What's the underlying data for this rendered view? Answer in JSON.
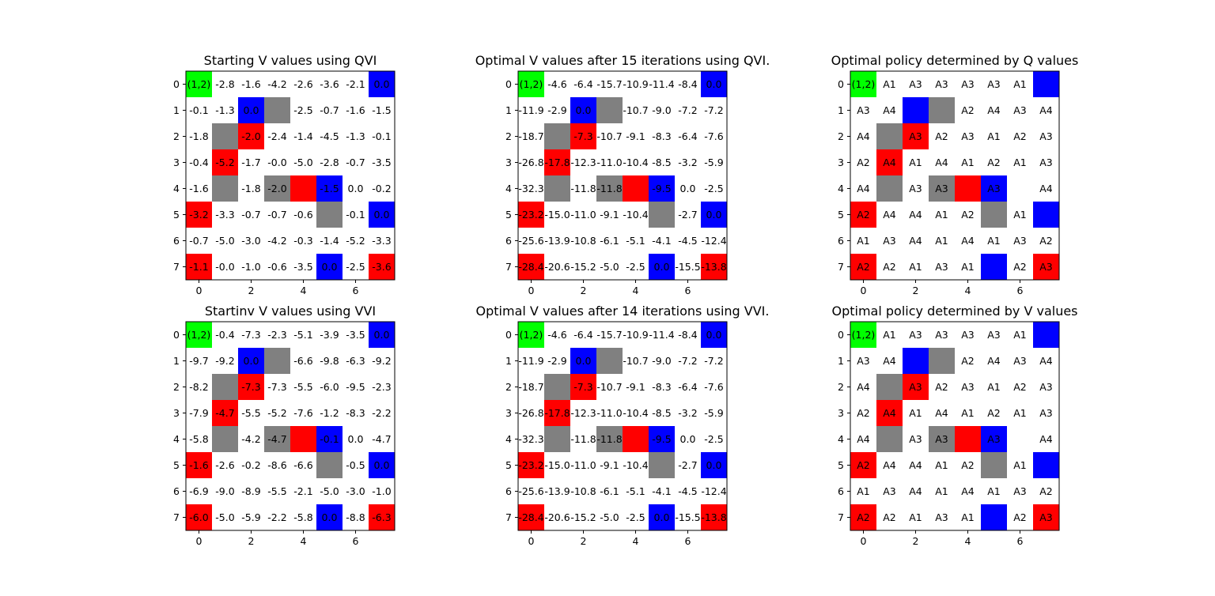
{
  "colors": {
    "start": "#00ff00",
    "goal": "#0000ff",
    "hazard": "#ff0000",
    "wall": "#808080",
    "empty": "#ffffff"
  },
  "legend_map": {
    "S": "start",
    "G": "goal",
    "R": "hazard",
    "W": "wall",
    ".": "empty"
  },
  "chart_data": [
    {
      "type": "heatmap",
      "title": "Starting V values using QVI",
      "x_ticks": [
        "0",
        "2",
        "4",
        "6"
      ],
      "y_ticks": [
        "0",
        "1",
        "2",
        "3",
        "4",
        "5",
        "6",
        "7"
      ],
      "layout": [
        "S......G",
        "..GW....",
        ".WR.....",
        ".R......",
        ".W.WRG..",
        "R....W.G",
        "........",
        "R....G.R"
      ],
      "cells": [
        [
          "(1,2)",
          "-2.8",
          "-1.6",
          "-4.2",
          "-2.6",
          "-3.6",
          "-2.1",
          "0.0"
        ],
        [
          "-0.1",
          "-1.3",
          "0.0",
          "",
          "-2.5",
          "-0.7",
          "-1.6",
          "-1.5"
        ],
        [
          "-1.8",
          "",
          "-2.0",
          "-2.4",
          "-1.4",
          "-4.5",
          "-1.3",
          "-0.1"
        ],
        [
          "-0.4",
          "-5.2",
          "-1.7",
          "-0.0",
          "-5.0",
          "-2.8",
          "-0.7",
          "-3.5"
        ],
        [
          "-1.6",
          "",
          "-1.8",
          "-2.0",
          "",
          "-1.5",
          "0.0",
          "-0.2"
        ],
        [
          "-3.2",
          "-3.3",
          "-0.7",
          "-0.7",
          "-0.6",
          "",
          "-0.1",
          "0.0"
        ],
        [
          "-0.7",
          "-5.0",
          "-3.0",
          "-4.2",
          "-0.3",
          "-1.4",
          "-5.2",
          "-3.3"
        ],
        [
          "-1.1",
          "-0.0",
          "-1.0",
          "-0.6",
          "-3.5",
          "0.0",
          "-2.5",
          "-3.6"
        ]
      ]
    },
    {
      "type": "heatmap",
      "title": "Optimal V values after 15 iterations using QVI.",
      "x_ticks": [
        "0",
        "2",
        "4",
        "6"
      ],
      "y_ticks": [
        "0",
        "1",
        "2",
        "3",
        "4",
        "5",
        "6",
        "7"
      ],
      "layout": [
        "S......G",
        "..GW....",
        ".WR.....",
        ".R......",
        ".W.WRG..",
        "R....W.G",
        "........",
        "R....G.R"
      ],
      "cells": [
        [
          "(1,2)",
          "-4.6",
          "-6.4",
          "-15.7",
          "-10.9",
          "-11.4",
          "-8.4",
          "0.0"
        ],
        [
          "-11.9",
          "-2.9",
          "0.0",
          "",
          "-10.7",
          "-9.0",
          "-7.2",
          "-7.2"
        ],
        [
          "-18.7",
          "",
          "-7.3",
          "-10.7",
          "-9.1",
          "-8.3",
          "-6.4",
          "-7.6"
        ],
        [
          "-26.8",
          "-17.8",
          "-12.3",
          "-11.0",
          "-10.4",
          "-8.5",
          "-3.2",
          "-5.9"
        ],
        [
          "-32.3",
          "",
          "-11.8",
          "-11.8",
          "",
          "-9.5",
          "0.0",
          "-2.5"
        ],
        [
          "-23.2",
          "-15.0",
          "-11.0",
          "-9.1",
          "-10.4",
          "",
          "-2.7",
          "0.0"
        ],
        [
          "-25.6",
          "-13.9",
          "-10.8",
          "-6.1",
          "-5.1",
          "-4.1",
          "-4.5",
          "-12.4"
        ],
        [
          "-28.4",
          "-20.6",
          "-15.2",
          "-5.0",
          "-2.5",
          "0.0",
          "-15.5",
          "-13.8"
        ]
      ]
    },
    {
      "type": "heatmap",
      "title": "Optimal policy determined by Q values",
      "x_ticks": [
        "0",
        "2",
        "4",
        "6"
      ],
      "y_ticks": [
        "0",
        "1",
        "2",
        "3",
        "4",
        "5",
        "6",
        "7"
      ],
      "layout": [
        "S......G",
        "..GW....",
        ".WR.....",
        ".R......",
        ".W.WRG..",
        "R....W.G",
        "........",
        "R....G.R"
      ],
      "cells": [
        [
          "(1,2)",
          "A1",
          "A3",
          "A3",
          "A3",
          "A3",
          "A1",
          ""
        ],
        [
          "A3",
          "A4",
          "",
          "",
          "A2",
          "A4",
          "A3",
          "A4"
        ],
        [
          "A4",
          "",
          "A3",
          "A2",
          "A3",
          "A1",
          "A2",
          "A3"
        ],
        [
          "A2",
          "A4",
          "A1",
          "A4",
          "A1",
          "A2",
          "A1",
          "A3"
        ],
        [
          "A4",
          "",
          "A3",
          "A3",
          "",
          "A3",
          "",
          "A4"
        ],
        [
          "A2",
          "A4",
          "A4",
          "A1",
          "A2",
          "",
          "A1",
          ""
        ],
        [
          "A1",
          "A3",
          "A4",
          "A1",
          "A4",
          "A1",
          "A3",
          "A2"
        ],
        [
          "A2",
          "A2",
          "A1",
          "A3",
          "A1",
          "",
          "A2",
          "A3"
        ]
      ]
    },
    {
      "type": "heatmap",
      "title": "Startinv V values using VVI",
      "x_ticks": [
        "0",
        "2",
        "4",
        "6"
      ],
      "y_ticks": [
        "0",
        "1",
        "2",
        "3",
        "4",
        "5",
        "6",
        "7"
      ],
      "layout": [
        "S......G",
        "..GW....",
        ".WR.....",
        ".R......",
        ".W.WRG..",
        "R....W.G",
        "........",
        "R....G.R"
      ],
      "cells": [
        [
          "(1,2)",
          "-0.4",
          "-7.3",
          "-2.3",
          "-5.1",
          "-3.9",
          "-3.5",
          "0.0"
        ],
        [
          "-9.7",
          "-9.2",
          "0.0",
          "",
          "-6.6",
          "-9.8",
          "-6.3",
          "-9.2"
        ],
        [
          "-8.2",
          "",
          "-7.3",
          "-7.3",
          "-5.5",
          "-6.0",
          "-9.5",
          "-2.3"
        ],
        [
          "-7.9",
          "-4.7",
          "-5.5",
          "-5.2",
          "-7.6",
          "-1.2",
          "-8.3",
          "-2.2"
        ],
        [
          "-5.8",
          "",
          "-4.2",
          "-4.7",
          "",
          "-0.1",
          "0.0",
          "-4.7"
        ],
        [
          "-1.6",
          "-2.6",
          "-0.2",
          "-8.6",
          "-6.6",
          "",
          "-0.5",
          "0.0"
        ],
        [
          "-6.9",
          "-9.0",
          "-8.9",
          "-5.5",
          "-2.1",
          "-5.0",
          "-3.0",
          "-1.0"
        ],
        [
          "-6.0",
          "-5.0",
          "-5.9",
          "-2.2",
          "-5.8",
          "0.0",
          "-8.8",
          "-6.3"
        ]
      ]
    },
    {
      "type": "heatmap",
      "title": "Optimal V values after 14 iterations using VVI.",
      "x_ticks": [
        "0",
        "2",
        "4",
        "6"
      ],
      "y_ticks": [
        "0",
        "1",
        "2",
        "3",
        "4",
        "5",
        "6",
        "7"
      ],
      "layout": [
        "S......G",
        "..GW....",
        ".WR.....",
        ".R......",
        ".W.WRG..",
        "R....W.G",
        "........",
        "R....G.R"
      ],
      "cells": [
        [
          "(1,2)",
          "-4.6",
          "-6.4",
          "-15.7",
          "-10.9",
          "-11.4",
          "-8.4",
          "0.0"
        ],
        [
          "-11.9",
          "-2.9",
          "0.0",
          "",
          "-10.7",
          "-9.0",
          "-7.2",
          "-7.2"
        ],
        [
          "-18.7",
          "",
          "-7.3",
          "-10.7",
          "-9.1",
          "-8.3",
          "-6.4",
          "-7.6"
        ],
        [
          "-26.8",
          "-17.8",
          "-12.3",
          "-11.0",
          "-10.4",
          "-8.5",
          "-3.2",
          "-5.9"
        ],
        [
          "-32.3",
          "",
          "-11.8",
          "-11.8",
          "",
          "-9.5",
          "0.0",
          "-2.5"
        ],
        [
          "-23.2",
          "-15.0",
          "-11.0",
          "-9.1",
          "-10.4",
          "",
          "-2.7",
          "0.0"
        ],
        [
          "-25.6",
          "-13.9",
          "-10.8",
          "-6.1",
          "-5.1",
          "-4.1",
          "-4.5",
          "-12.4"
        ],
        [
          "-28.4",
          "-20.6",
          "-15.2",
          "-5.0",
          "-2.5",
          "0.0",
          "-15.5",
          "-13.8"
        ]
      ]
    },
    {
      "type": "heatmap",
      "title": "Optimal policy determined by V values",
      "x_ticks": [
        "0",
        "2",
        "4",
        "6"
      ],
      "y_ticks": [
        "0",
        "1",
        "2",
        "3",
        "4",
        "5",
        "6",
        "7"
      ],
      "layout": [
        "S......G",
        "..GW....",
        ".WR.....",
        ".R......",
        ".W.WRG..",
        "R....W.G",
        "........",
        "R....G.R"
      ],
      "cells": [
        [
          "(1,2)",
          "A1",
          "A3",
          "A3",
          "A3",
          "A3",
          "A1",
          ""
        ],
        [
          "A3",
          "A4",
          "",
          "",
          "A2",
          "A4",
          "A3",
          "A4"
        ],
        [
          "A4",
          "",
          "A3",
          "A2",
          "A3",
          "A1",
          "A2",
          "A3"
        ],
        [
          "A2",
          "A4",
          "A1",
          "A4",
          "A1",
          "A2",
          "A1",
          "A3"
        ],
        [
          "A4",
          "",
          "A3",
          "A3",
          "",
          "A3",
          "",
          "A4"
        ],
        [
          "A2",
          "A4",
          "A4",
          "A1",
          "A2",
          "",
          "A1",
          ""
        ],
        [
          "A1",
          "A3",
          "A4",
          "A1",
          "A4",
          "A1",
          "A3",
          "A2"
        ],
        [
          "A2",
          "A2",
          "A1",
          "A3",
          "A1",
          "",
          "A2",
          "A3"
        ]
      ]
    }
  ]
}
